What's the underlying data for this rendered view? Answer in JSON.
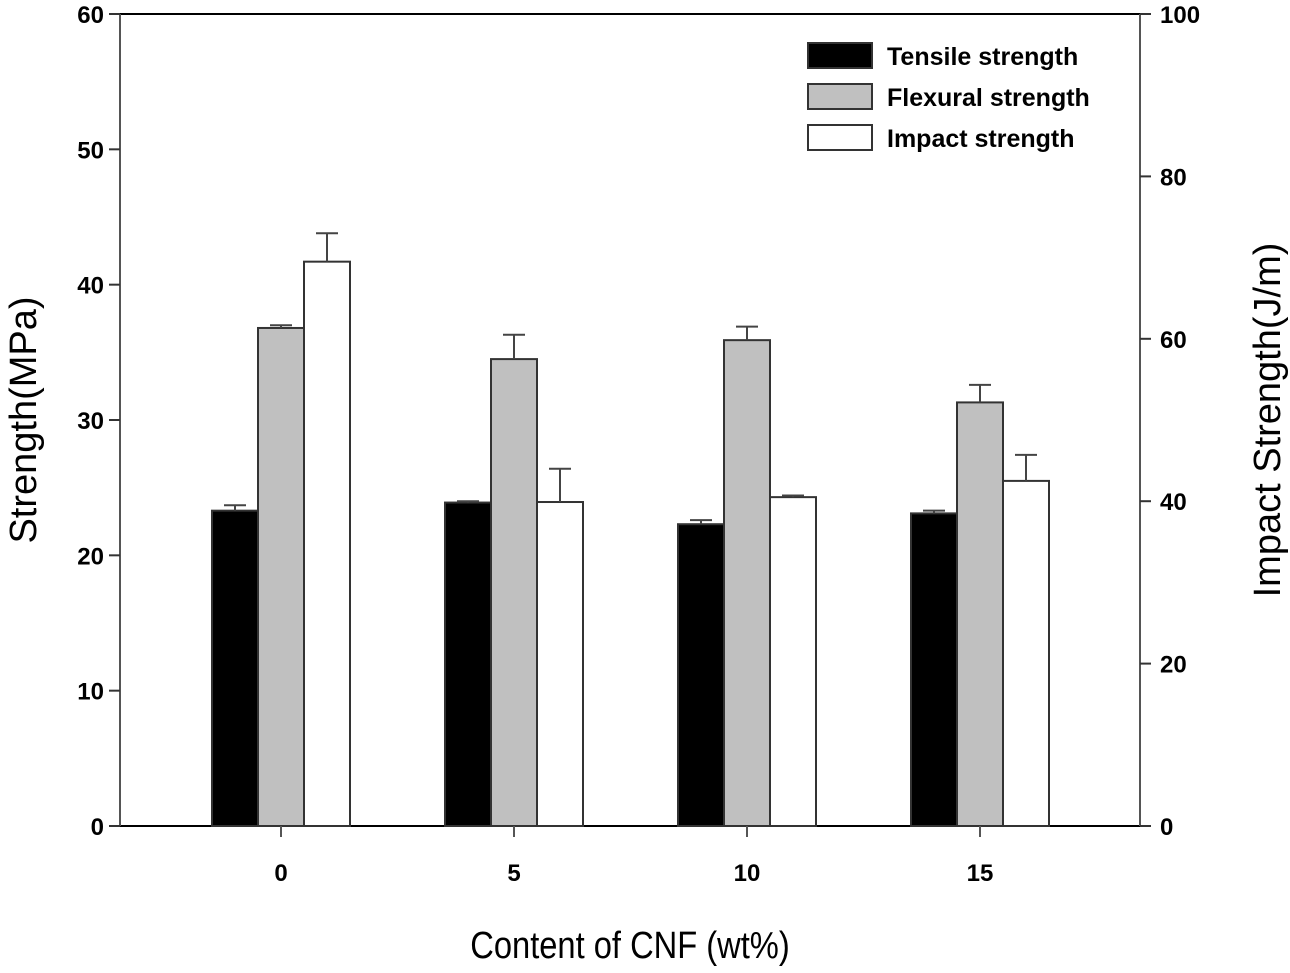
{
  "chart_data": {
    "type": "bar",
    "title": "",
    "xlabel": "Content of CNF (wt%)",
    "ylabel": "Strength(MPa)",
    "y2label": "Impact Strength(J/m)",
    "categories": [
      "0",
      "5",
      "10",
      "15"
    ],
    "ylim": [
      0,
      60
    ],
    "y_ticks": [
      0,
      10,
      20,
      30,
      40,
      50,
      60
    ],
    "y2lim": [
      0,
      100
    ],
    "y2_ticks": [
      0,
      20,
      40,
      60,
      80,
      100
    ],
    "grid": false,
    "legend_position": "top-right",
    "series": [
      {
        "name": "Tensile strength",
        "axis": "left",
        "color": "#000000",
        "values": [
          23.3,
          23.9,
          22.3,
          23.1
        ],
        "errors": [
          0.4,
          0.1,
          0.3,
          0.2
        ]
      },
      {
        "name": "Flexural strength",
        "axis": "left",
        "color": "#c0c0c0",
        "values": [
          36.8,
          34.5,
          35.9,
          31.3
        ],
        "errors": [
          0.2,
          1.8,
          1.0,
          1.3
        ]
      },
      {
        "name": "Impact strength",
        "axis": "right",
        "color": "#ffffff",
        "values": [
          69.5,
          39.9,
          40.5,
          42.5
        ],
        "errors": [
          3.5,
          4.1,
          0.2,
          3.2
        ]
      }
    ]
  }
}
